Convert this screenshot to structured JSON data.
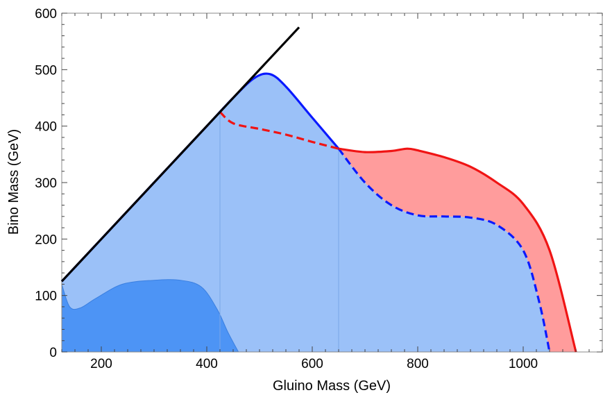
{
  "chart_data": {
    "type": "area",
    "title": "",
    "xlabel": "Gluino Mass (GeV)",
    "ylabel": "Bino Mass (GeV)",
    "xlim": [
      125,
      1150
    ],
    "ylim": [
      0,
      600
    ],
    "x_ticks": [
      200,
      400,
      600,
      800,
      1000
    ],
    "y_ticks": [
      0,
      100,
      200,
      300,
      400,
      500,
      600
    ],
    "x_tick_labels": [
      "200",
      "400",
      "600",
      "800",
      "1000"
    ],
    "y_tick_labels": [
      "0",
      "100",
      "200",
      "300",
      "400",
      "500",
      "600"
    ],
    "grid": false,
    "legend": "none",
    "colors": {
      "light_blue_fill": "#9bc1f8",
      "dark_blue_fill": "#4d94f5",
      "red_fill": "#ff9c9c",
      "blue_line": "#0a1aff",
      "red_line": "#f01414",
      "diagonal_line": "#000000"
    },
    "diagonal_line": [
      [
        125,
        125
      ],
      [
        575,
        575
      ]
    ],
    "series": [
      {
        "style": "solid-blue",
        "x": [
          125,
          200,
          300,
          400,
          450,
          490,
          520,
          550,
          600,
          650
        ],
        "y": [
          125,
          200,
          300,
          400,
          450,
          485,
          492,
          470,
          415,
          360
        ]
      },
      {
        "style": "dashed-blue",
        "x": [
          650,
          700,
          750,
          800,
          850,
          900,
          950,
          1000,
          1030,
          1050
        ],
        "y": [
          360,
          300,
          260,
          242,
          240,
          238,
          225,
          180,
          90,
          0
        ]
      },
      {
        "style": "dashed-red",
        "x": [
          425,
          450,
          500,
          550,
          600,
          650
        ],
        "y": [
          425,
          405,
          395,
          385,
          372,
          360
        ]
      },
      {
        "style": "solid-red",
        "x": [
          650,
          700,
          750,
          780,
          800,
          850,
          900,
          950,
          1000,
          1050,
          1100
        ],
        "y": [
          360,
          354,
          356,
          360,
          357,
          345,
          328,
          300,
          262,
          180,
          0
        ]
      },
      {
        "style": "dark-blue-region",
        "x": [
          125,
          140,
          160,
          190,
          240,
          300,
          350,
          390,
          420,
          440,
          460
        ],
        "y": [
          120,
          80,
          78,
          95,
          120,
          127,
          127,
          115,
          75,
          35,
          0
        ]
      }
    ]
  }
}
